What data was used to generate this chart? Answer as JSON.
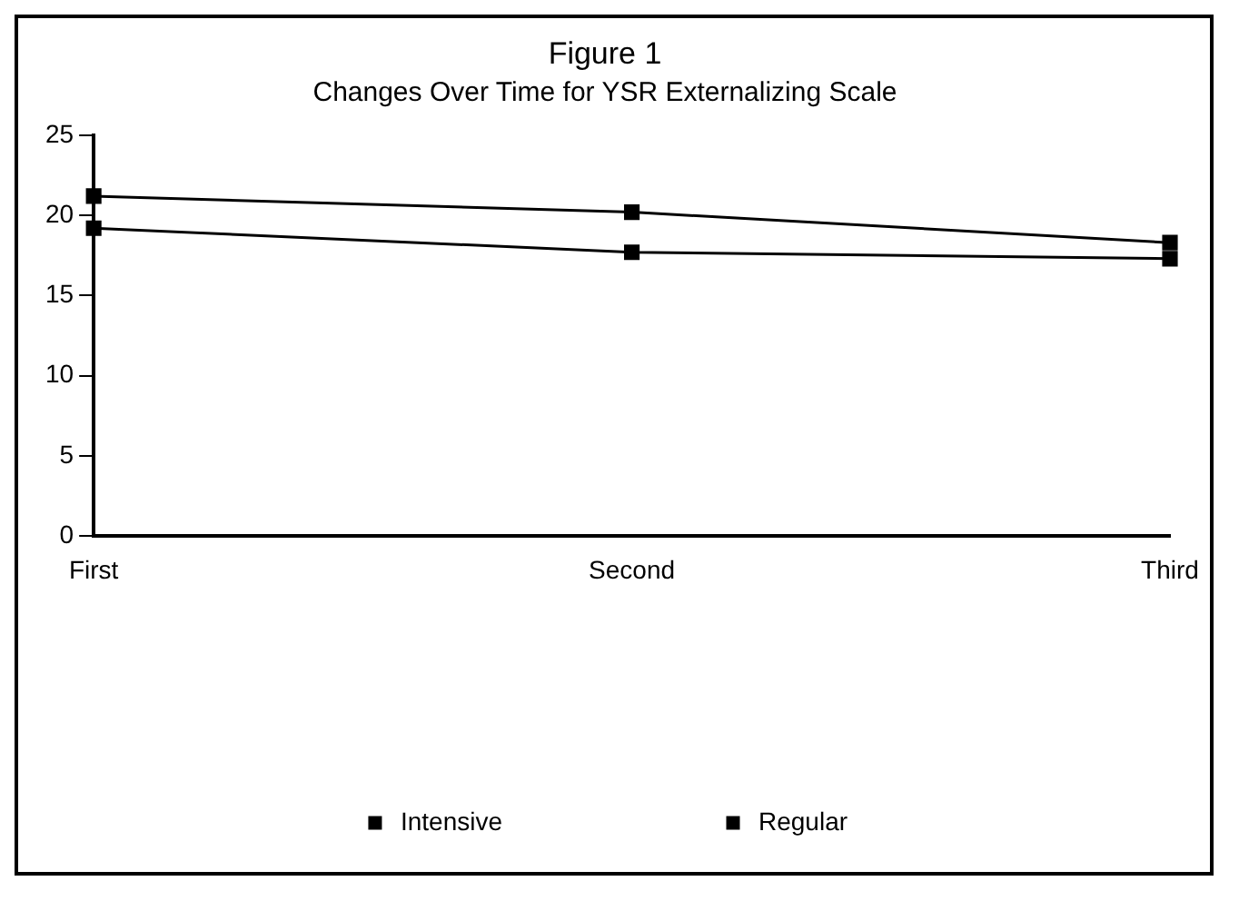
{
  "chart_data": {
    "type": "line",
    "title": "Figure 1",
    "subtitle": "Changes Over Time for YSR Externalizing Scale",
    "categories": [
      "First",
      "Second",
      "Third"
    ],
    "series": [
      {
        "name": "Intensive",
        "color": "#000000",
        "values": [
          21.2,
          20.2,
          18.3
        ]
      },
      {
        "name": "Regular",
        "color": "#000000",
        "values": [
          19.2,
          17.7,
          17.3
        ]
      }
    ],
    "ylim": [
      0,
      25
    ],
    "yticks": [
      0,
      5,
      10,
      15,
      20,
      25
    ],
    "grid": false,
    "legend": "bottom",
    "marker": "square",
    "line_style": "solid"
  }
}
